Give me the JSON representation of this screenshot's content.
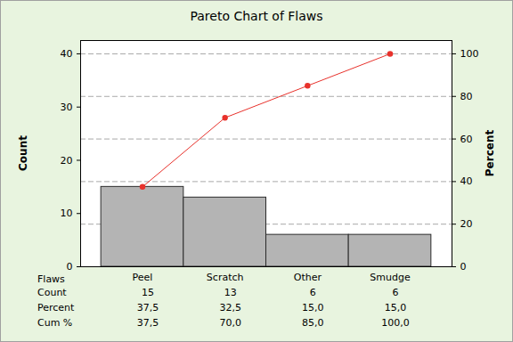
{
  "chart_data": {
    "type": "pareto",
    "title": "Pareto Chart of Flaws",
    "x_label": "Flaws",
    "y_label": "Count",
    "y2_label": "Percent",
    "categories": [
      "Peel",
      "Scratch",
      "Other",
      "Smudge"
    ],
    "series": [
      {
        "name": "Count",
        "type": "bar",
        "color": "#b4b4b4",
        "values": [
          15,
          13,
          6,
          6
        ]
      },
      {
        "name": "Percent",
        "type": "table",
        "values": [
          37.5,
          32.5,
          15,
          15
        ],
        "value_labels": [
          "37,5",
          "32,5",
          "15,0",
          "15,0"
        ]
      },
      {
        "name": "Cum %",
        "type": "line",
        "axis": "y2",
        "color": "#e8322c",
        "marker": "circle",
        "line_style": "solid",
        "values": [
          37.5,
          70,
          85,
          100
        ],
        "value_labels": [
          "37,5",
          "70,0",
          "85,0",
          "100,0"
        ]
      }
    ],
    "ylim": [
      0,
      42.5
    ],
    "yticks": [
      0,
      10,
      20,
      30,
      40
    ],
    "y2lim": [
      0,
      106.25
    ],
    "y2ticks": [
      0,
      20,
      40,
      60,
      80,
      100
    ],
    "grid": true
  }
}
